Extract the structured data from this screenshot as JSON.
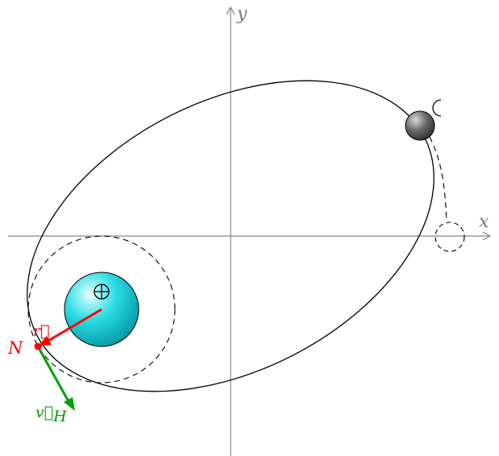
{
  "axes": {
    "x_label": "x",
    "y_label": "y"
  },
  "bodies": {
    "earth": {
      "symbol": "⊕",
      "color": "#00c8d2"
    },
    "moon": {
      "symbol": "☾",
      "color": "#444444"
    }
  },
  "point": {
    "label": "N",
    "color": "#ff0000"
  },
  "vectors": {
    "r": {
      "label": "r⃗",
      "color": "#ff0000"
    },
    "vH": {
      "label": "v⃗",
      "subscript": "H",
      "color": "#00a000"
    }
  }
}
